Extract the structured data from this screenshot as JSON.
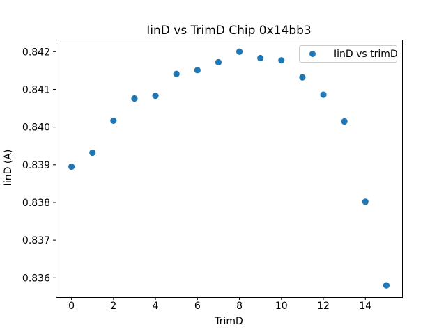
{
  "figure": {
    "background": "#ffffff",
    "text_color": "#000000",
    "spine_color": "#000000"
  },
  "chart_data": {
    "type": "scatter",
    "title": "IinD vs TrimD Chip 0x14bb3",
    "xlabel": "TrimD",
    "ylabel": "IinD (A)",
    "legend_label": "IinD vs trimD",
    "legend_position": "upper right",
    "marker_color": "#1f77b4",
    "marker_shape": "circle",
    "grid": false,
    "x": [
      0,
      1,
      2,
      3,
      4,
      5,
      6,
      7,
      8,
      9,
      10,
      11,
      12,
      13,
      14,
      15
    ],
    "y": [
      0.83895,
      0.83932,
      0.84017,
      0.84076,
      0.84083,
      0.84141,
      0.84151,
      0.84172,
      0.842,
      0.84183,
      0.84177,
      0.84132,
      0.84086,
      0.84015,
      0.83802,
      0.8358
    ],
    "xlim": [
      -0.75,
      15.75
    ],
    "ylim": [
      0.835489,
      0.842319
    ],
    "xticks": [
      0,
      2,
      4,
      6,
      8,
      10,
      12,
      14
    ],
    "xtick_labels": [
      "0",
      "2",
      "4",
      "6",
      "8",
      "10",
      "12",
      "14"
    ],
    "yticks": [
      0.836,
      0.837,
      0.838,
      0.839,
      0.84,
      0.841,
      0.842
    ],
    "ytick_labels": [
      "0.836",
      "0.837",
      "0.838",
      "0.839",
      "0.840",
      "0.841",
      "0.842"
    ]
  }
}
